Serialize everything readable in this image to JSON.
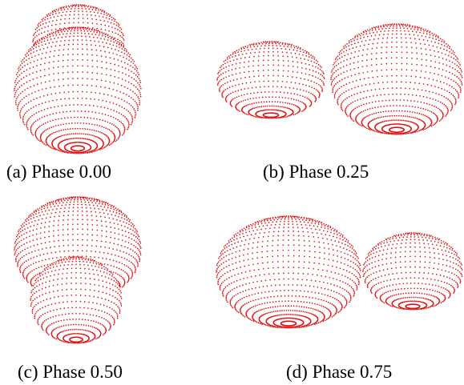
{
  "panels": [
    {
      "caption": "(a) Phase 0.00"
    },
    {
      "caption": "(b) Phase 0.25"
    },
    {
      "caption": "(c) Phase 0.50"
    },
    {
      "caption": "(d) Phase 0.75"
    }
  ]
}
